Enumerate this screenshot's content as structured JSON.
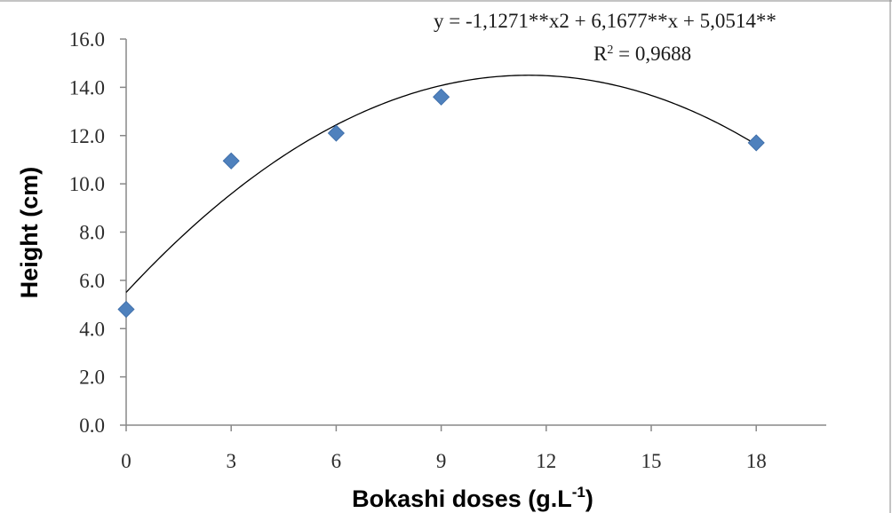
{
  "chart_data": {
    "type": "scatter",
    "xlabel": "Bokashi doses (g.L",
    "xlabel_sup": "-1",
    "xlabel_close": ")",
    "ylabel": "Height (cm)",
    "xlim": [
      0,
      20
    ],
    "ylim": [
      0,
      16
    ],
    "x_ticks": [
      0,
      3,
      6,
      9,
      12,
      15,
      18
    ],
    "x_tick_labels": [
      "0",
      "3",
      "6",
      "9",
      "12",
      "15",
      "18"
    ],
    "y_ticks": [
      0,
      2,
      4,
      6,
      8,
      10,
      12,
      14,
      16
    ],
    "y_tick_labels": [
      "0.0",
      "2.0",
      "4.0",
      "6.0",
      "8.0",
      "10.0",
      "12.0",
      "14.0",
      "16.0"
    ],
    "grid": false,
    "marker": "diamond",
    "marker_color": "#4f81bd",
    "line_color": "#000000",
    "points": [
      {
        "x": 0,
        "y": 4.8
      },
      {
        "x": 3,
        "y": 10.95
      },
      {
        "x": 6,
        "y": 12.1
      },
      {
        "x": 9,
        "y": 13.6
      },
      {
        "x": 18,
        "y": 11.7
      }
    ],
    "trendline": {
      "type": "polynomial",
      "order": 2,
      "equation_text": "y = -1,1271**x2 + 6,1677**x + 5,0514**",
      "r2_label": "R",
      "r2_sup": "2",
      "r2_value_text": " = 0,9688",
      "curve_y_at_x0": 5.5,
      "vertex_x": 11.5,
      "vertex_y": 14.5
    }
  }
}
